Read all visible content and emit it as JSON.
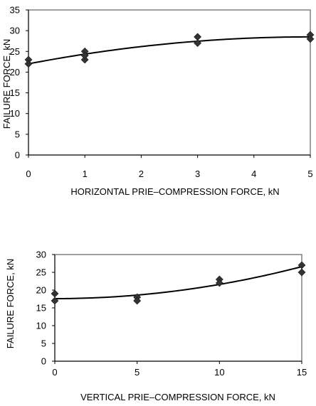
{
  "chart_data": [
    {
      "type": "scatter",
      "xlabel": "HORIZONTAL PRIE–COMPRESSION FORCE,  kN",
      "ylabel": "FAILURE FORCE,  kN",
      "xlim": [
        0,
        5
      ],
      "ylim": [
        0,
        35
      ],
      "xticks": [
        0,
        1,
        2,
        3,
        4,
        5
      ],
      "yticks": [
        0,
        5,
        10,
        15,
        20,
        25,
        30,
        35
      ],
      "grid": false,
      "marker": "diamond",
      "color": "#333333",
      "points": [
        {
          "x": 0,
          "y": 23.0
        },
        {
          "x": 0,
          "y": 22.0
        },
        {
          "x": 1,
          "y": 25.0
        },
        {
          "x": 1,
          "y": 23.0
        },
        {
          "x": 1,
          "y": 24.0
        },
        {
          "x": 3,
          "y": 28.5
        },
        {
          "x": 3,
          "y": 27.0
        },
        {
          "x": 5,
          "y": 29.0
        },
        {
          "x": 5,
          "y": 28.0
        }
      ],
      "trendline": {
        "type": "polynomial",
        "coefficients": [
          22.0,
          2.6,
          -0.26
        ]
      }
    },
    {
      "type": "scatter",
      "xlabel": "VERTICAL PRIE–COMPRESSION FORCE, kN",
      "ylabel": "FAILURE FORCE, kN",
      "xlim": [
        0,
        15
      ],
      "ylim": [
        0,
        30
      ],
      "xticks": [
        0,
        5,
        10,
        15
      ],
      "yticks": [
        0,
        5,
        10,
        15,
        20,
        25,
        30
      ],
      "grid": false,
      "marker": "diamond",
      "color": "#333333",
      "points": [
        {
          "x": 0,
          "y": 19.0
        },
        {
          "x": 0,
          "y": 17.0
        },
        {
          "x": 5,
          "y": 18.0
        },
        {
          "x": 5,
          "y": 17.0
        },
        {
          "x": 10,
          "y": 23.0
        },
        {
          "x": 10,
          "y": 22.0
        },
        {
          "x": 15,
          "y": 27.0
        },
        {
          "x": 15,
          "y": 25.0
        }
      ],
      "trendline": {
        "type": "polynomial",
        "coefficients": [
          17.6,
          0.0,
          0.04
        ]
      }
    }
  ]
}
